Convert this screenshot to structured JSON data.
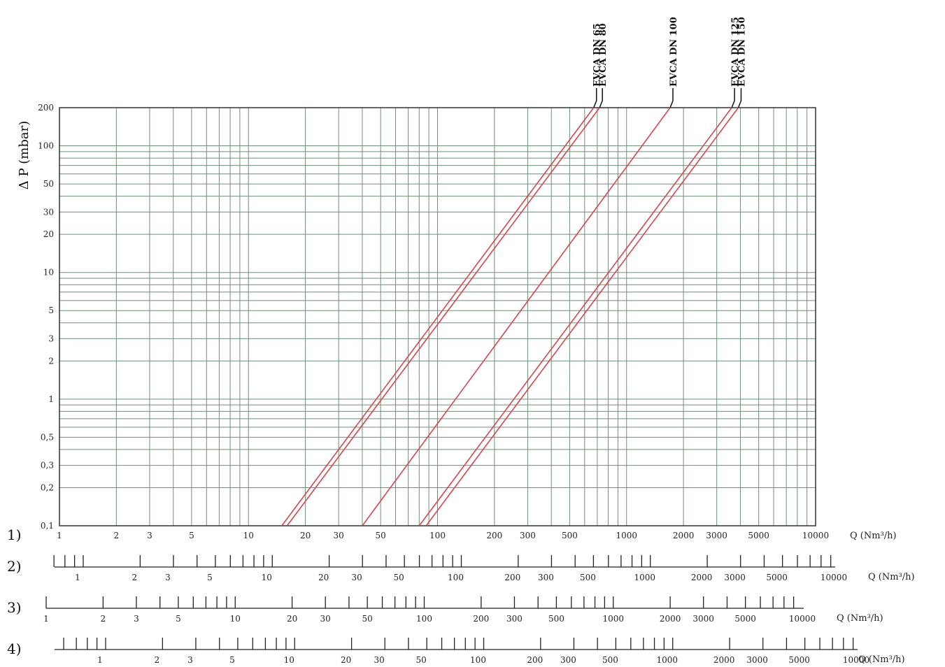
{
  "chart_data": {
    "type": "line",
    "title": "",
    "ylabel": "Δ P (mbar)",
    "xlabel": "Q (Nm³/h)",
    "x_scale": "log",
    "y_scale": "log",
    "xlim": [
      1,
      10000
    ],
    "ylim": [
      0.1,
      200
    ],
    "grid": true,
    "y_ticks": [
      {
        "value": 200,
        "label": "200"
      },
      {
        "value": 100,
        "label": "100"
      },
      {
        "value": 50,
        "label": "50"
      },
      {
        "value": 30,
        "label": "30"
      },
      {
        "value": 20,
        "label": "20"
      },
      {
        "value": 10,
        "label": "10"
      },
      {
        "value": 5,
        "label": "5"
      },
      {
        "value": 3,
        "label": "3"
      },
      {
        "value": 2,
        "label": "2"
      },
      {
        "value": 1,
        "label": "1"
      },
      {
        "value": 0.5,
        "label": "0,5"
      },
      {
        "value": 0.3,
        "label": "0,3"
      },
      {
        "value": 0.2,
        "label": "0,2"
      },
      {
        "value": 0.1,
        "label": "0,1"
      }
    ],
    "series": [
      {
        "name": "EVCA DN 65",
        "points": [
          [
            15,
            0.1
          ],
          [
            670,
            200
          ]
        ]
      },
      {
        "name": "EVCA DN 80",
        "points": [
          [
            16,
            0.1
          ],
          [
            720,
            200
          ]
        ]
      },
      {
        "name": "EVCA DN 100",
        "points": [
          [
            40,
            0.1
          ],
          [
            1700,
            200
          ]
        ]
      },
      {
        "name": "EVCA DN 125",
        "points": [
          [
            80,
            0.1
          ],
          [
            3600,
            200
          ]
        ]
      },
      {
        "name": "EVCA DN 150",
        "points": [
          [
            87,
            0.1
          ],
          [
            3900,
            200
          ]
        ]
      }
    ],
    "x_scales": [
      {
        "row": "1)",
        "unit": "Q (Nm³/h)",
        "labels": [
          {
            "value": 1,
            "label": "1"
          },
          {
            "value": 2,
            "label": "2"
          },
          {
            "value": 3,
            "label": "3"
          },
          {
            "value": 5,
            "label": "5"
          },
          {
            "value": 10,
            "label": "10"
          },
          {
            "value": 20,
            "label": "20"
          },
          {
            "value": 30,
            "label": "30"
          },
          {
            "value": 50,
            "label": "50"
          },
          {
            "value": 100,
            "label": "100"
          },
          {
            "value": 200,
            "label": "200"
          },
          {
            "value": 300,
            "label": "300"
          },
          {
            "value": 500,
            "label": "500"
          },
          {
            "value": 1000,
            "label": "1000"
          },
          {
            "value": 2000,
            "label": "2000"
          },
          {
            "value": 3000,
            "label": "3000"
          },
          {
            "value": 5000,
            "label": "5000"
          },
          {
            "value": 10000,
            "label": "10000"
          }
        ]
      },
      {
        "row": "2)",
        "unit": "Q (Nm³/h)",
        "labels": [
          {
            "value": 1,
            "label": "1"
          },
          {
            "value": 2,
            "label": "2"
          },
          {
            "value": 3,
            "label": "3"
          },
          {
            "value": 5,
            "label": "5"
          },
          {
            "value": 10,
            "label": "10"
          },
          {
            "value": 20,
            "label": "20"
          },
          {
            "value": 30,
            "label": "30"
          },
          {
            "value": 50,
            "label": "50"
          },
          {
            "value": 100,
            "label": "100"
          },
          {
            "value": 200,
            "label": "200"
          },
          {
            "value": 300,
            "label": "300"
          },
          {
            "value": 500,
            "label": "500"
          },
          {
            "value": 1000,
            "label": "1000"
          },
          {
            "value": 2000,
            "label": "2000"
          },
          {
            "value": 3000,
            "label": "3000"
          },
          {
            "value": 5000,
            "label": "5000"
          },
          {
            "value": 10000,
            "label": "10000"
          }
        ]
      },
      {
        "row": "3)",
        "unit": "Q (Nm³/h)",
        "labels": [
          {
            "value": 1,
            "label": "1"
          },
          {
            "value": 2,
            "label": "2"
          },
          {
            "value": 3,
            "label": "3"
          },
          {
            "value": 5,
            "label": "5"
          },
          {
            "value": 10,
            "label": "10"
          },
          {
            "value": 20,
            "label": "20"
          },
          {
            "value": 30,
            "label": "30"
          },
          {
            "value": 50,
            "label": "50"
          },
          {
            "value": 100,
            "label": "100"
          },
          {
            "value": 200,
            "label": "200"
          },
          {
            "value": 300,
            "label": "300"
          },
          {
            "value": 500,
            "label": "500"
          },
          {
            "value": 1000,
            "label": "1000"
          },
          {
            "value": 2000,
            "label": "2000"
          },
          {
            "value": 3000,
            "label": "3000"
          },
          {
            "value": 5000,
            "label": "5000"
          },
          {
            "value": 10000,
            "label": "10000"
          }
        ]
      },
      {
        "row": "4)",
        "unit": "Q (Nm³/h)",
        "labels": [
          {
            "value": 1,
            "label": "1"
          },
          {
            "value": 2,
            "label": "2"
          },
          {
            "value": 3,
            "label": "3"
          },
          {
            "value": 5,
            "label": "5"
          },
          {
            "value": 10,
            "label": "10"
          },
          {
            "value": 20,
            "label": "20"
          },
          {
            "value": 30,
            "label": "30"
          },
          {
            "value": 50,
            "label": "50"
          },
          {
            "value": 100,
            "label": "100"
          },
          {
            "value": 200,
            "label": "200"
          },
          {
            "value": 300,
            "label": "300"
          },
          {
            "value": 500,
            "label": "500"
          },
          {
            "value": 1000,
            "label": "1000"
          },
          {
            "value": 2000,
            "label": "2000"
          },
          {
            "value": 3000,
            "label": "3000"
          },
          {
            "value": 5000,
            "label": "5000"
          },
          {
            "value": 10000,
            "label": "10000"
          }
        ]
      }
    ]
  }
}
